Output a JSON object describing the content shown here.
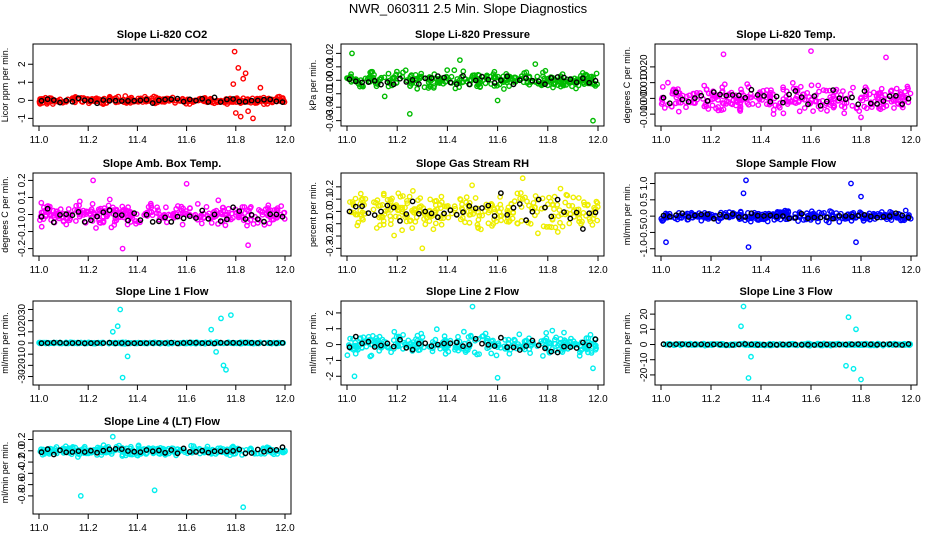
{
  "page_title": "NWR_060311  2.5 Min. Slope Diagnostics",
  "chart_data": [
    {
      "type": "scatter",
      "title": "Slope Li-820 CO2",
      "ylabel": "Licor ppm per min.",
      "color": "#ff0000",
      "xlim": [
        11.0,
        12.0
      ],
      "ylim": [
        -1.2,
        2.9
      ],
      "yticks": [
        -1,
        0,
        1,
        2
      ],
      "ytick_labels": [
        "-1",
        "0",
        "1",
        "2"
      ],
      "xticks": [
        11.0,
        11.2,
        11.4,
        11.6,
        11.8,
        12.0
      ],
      "xtick_labels": [
        "11.0",
        "11.2",
        "11.4",
        "11.6",
        "11.8",
        "12.0"
      ],
      "spread": 0.18,
      "outliers": [
        [
          11.795,
          2.7
        ],
        [
          11.81,
          1.8
        ],
        [
          11.83,
          1.2
        ],
        [
          11.85,
          -0.6
        ],
        [
          11.87,
          -1.0
        ],
        [
          11.79,
          0.9
        ],
        [
          11.82,
          -0.9
        ],
        [
          11.9,
          0.7
        ],
        [
          11.84,
          1.5
        ],
        [
          11.8,
          -0.7
        ]
      ]
    },
    {
      "type": "scatter",
      "title": "Slope Li-820 Pressure",
      "ylabel": "kPa per min.",
      "color": "#00bb00",
      "xlim": [
        11.0,
        12.0
      ],
      "ylim": [
        -0.031,
        0.024
      ],
      "yticks": [
        -0.03,
        -0.02,
        -0.01,
        0,
        0.01,
        0.02
      ],
      "ytick_labels": [
        "-0.03",
        "-0.02",
        "-0.01",
        "0.00",
        "0.01",
        "0.02"
      ],
      "xticks": [
        11.0,
        11.2,
        11.4,
        11.6,
        11.8,
        12.0
      ],
      "xtick_labels": [
        "11.0",
        "11.2",
        "11.4",
        "11.6",
        "11.8",
        "12.0"
      ],
      "spread": 0.006,
      "outliers": [
        [
          11.02,
          0.02
        ],
        [
          11.25,
          -0.025
        ],
        [
          11.6,
          -0.015
        ],
        [
          11.98,
          -0.03
        ],
        [
          11.45,
          0.015
        ],
        [
          11.15,
          -0.012
        ],
        [
          11.75,
          0.012
        ]
      ]
    },
    {
      "type": "scatter",
      "title": "Slope Li-820 Temp.",
      "ylabel": "degrees C per min.",
      "color": "#ff00ff",
      "xlim": [
        11.0,
        12.0
      ],
      "ylim": [
        -0.015,
        0.032
      ],
      "yticks": [
        -0.01,
        0,
        0.01,
        0.02
      ],
      "ytick_labels": [
        "-0.010",
        "0.000",
        "0.010",
        "0.020"
      ],
      "xticks": [
        11.0,
        11.2,
        11.4,
        11.6,
        11.8,
        12.0
      ],
      "xtick_labels": [
        "11.0",
        "11.2",
        "11.4",
        "11.6",
        "11.8",
        "12.0"
      ],
      "spread": 0.008,
      "outliers": [
        [
          11.25,
          0.028
        ],
        [
          11.6,
          0.03
        ],
        [
          11.45,
          -0.01
        ],
        [
          11.8,
          -0.012
        ],
        [
          11.9,
          0.026
        ]
      ]
    },
    {
      "type": "scatter",
      "title": "Slope Amb. Box Temp.",
      "ylabel": "degrees C per min.",
      "color": "#ff00ff",
      "xlim": [
        11.0,
        12.0
      ],
      "ylim": [
        -0.22,
        0.22
      ],
      "yticks": [
        -0.2,
        -0.1,
        0,
        0.1,
        0.2
      ],
      "ytick_labels": [
        "-0.2",
        "-0.1",
        "0.0",
        "0.1",
        "0.2"
      ],
      "xticks": [
        11.0,
        11.2,
        11.4,
        11.6,
        11.8,
        12.0
      ],
      "xtick_labels": [
        "11.0",
        "11.2",
        "11.4",
        "11.6",
        "11.8",
        "12.0"
      ],
      "spread": 0.06,
      "outliers": [
        [
          11.34,
          -0.2
        ],
        [
          11.6,
          0.18
        ],
        [
          11.22,
          0.2
        ],
        [
          11.85,
          -0.18
        ]
      ]
    },
    {
      "type": "scatter",
      "title": "Slope Gas Stream RH",
      "ylabel": "percent per min.",
      "color": "#eeee00",
      "xlim": [
        11.0,
        12.0
      ],
      "ylim": [
        -0.33,
        0.28
      ],
      "yticks": [
        -0.3,
        -0.2,
        -0.1,
        0,
        0.1,
        0.2
      ],
      "ytick_labels": [
        "-0.3",
        "-0.2",
        "-0.1",
        "0.0",
        "0.1",
        "0.2"
      ],
      "xticks": [
        11.0,
        11.2,
        11.4,
        11.6,
        11.8,
        12.0
      ],
      "xtick_labels": [
        "11.0",
        "11.2",
        "11.4",
        "11.6",
        "11.8",
        "12.0"
      ],
      "spread": 0.15,
      "outliers": [
        [
          11.3,
          -0.3
        ],
        [
          11.7,
          0.27
        ]
      ]
    },
    {
      "type": "scatter",
      "title": "Slope Sample Flow",
      "ylabel": "ml/min per min.",
      "color": "#0000ff",
      "xlim": [
        11.0,
        12.0
      ],
      "ylim": [
        -1.1,
        1.2
      ],
      "yticks": [
        -1,
        -0.5,
        0,
        0.5,
        1
      ],
      "ytick_labels": [
        "-1.0",
        "-0.5",
        "0.0",
        "0.5",
        "1.0"
      ],
      "xticks": [
        11.0,
        11.2,
        11.4,
        11.6,
        11.8,
        12.0
      ],
      "xtick_labels": [
        "11.0",
        "11.2",
        "11.4",
        "11.6",
        "11.8",
        "12.0"
      ],
      "spread": 0.15,
      "outliers": [
        [
          11.34,
          1.1
        ],
        [
          11.76,
          1.0
        ],
        [
          11.35,
          -0.95
        ],
        [
          11.78,
          -0.8
        ],
        [
          11.33,
          0.7
        ],
        [
          11.8,
          0.6
        ],
        [
          11.02,
          -0.8
        ]
      ]
    },
    {
      "type": "scatter",
      "title": "Slope Line 1 Flow",
      "ylabel": "ml/min per min.",
      "color": "#00eeee",
      "xlim": [
        11.0,
        12.0
      ],
      "ylim": [
        -34,
        34
      ],
      "yticks": [
        -30,
        -20,
        -10,
        0,
        10,
        20,
        30
      ],
      "ytick_labels": [
        "-30",
        "-20",
        "-10",
        "0",
        "10",
        "20",
        "30"
      ],
      "xticks": [
        11.0,
        11.2,
        11.4,
        11.6,
        11.8,
        12.0
      ],
      "xtick_labels": [
        "11.0",
        "11.2",
        "11.4",
        "11.6",
        "11.8",
        "12.0"
      ],
      "spread": 0.6,
      "outliers": [
        [
          11.33,
          30
        ],
        [
          11.34,
          -31
        ],
        [
          11.32,
          15
        ],
        [
          11.36,
          -12
        ],
        [
          11.3,
          10
        ],
        [
          11.74,
          22
        ],
        [
          11.76,
          -24
        ],
        [
          11.75,
          -20
        ],
        [
          11.7,
          12
        ],
        [
          11.72,
          -8
        ],
        [
          11.78,
          25
        ]
      ]
    },
    {
      "type": "scatter",
      "title": "Slope Line 2 Flow",
      "ylabel": "ml/min per min.",
      "color": "#00eeee",
      "xlim": [
        11.0,
        12.0
      ],
      "ylim": [
        -2.3,
        2.5
      ],
      "yticks": [
        -2,
        -1,
        0,
        1,
        2
      ],
      "ytick_labels": [
        "-2",
        "-1",
        "0",
        "1",
        "2"
      ],
      "xticks": [
        11.0,
        11.2,
        11.4,
        11.6,
        11.8,
        12.0
      ],
      "xtick_labels": [
        "11.0",
        "11.2",
        "11.4",
        "11.6",
        "11.8",
        "12.0"
      ],
      "spread": 0.65,
      "outliers": [
        [
          11.5,
          2.4
        ],
        [
          11.6,
          -2.1
        ],
        [
          11.03,
          -2.0
        ],
        [
          11.98,
          -1.5
        ]
      ]
    },
    {
      "type": "scatter",
      "title": "Slope Line 3 Flow",
      "ylabel": "ml/min per min.",
      "color": "#00eeee",
      "xlim": [
        11.0,
        12.0
      ],
      "ylim": [
        -24,
        26
      ],
      "yticks": [
        -20,
        -10,
        0,
        10,
        20
      ],
      "ytick_labels": [
        "-20",
        "-10",
        "0",
        "10",
        "20"
      ],
      "xticks": [
        11.0,
        11.2,
        11.4,
        11.6,
        11.8,
        12.0
      ],
      "xtick_labels": [
        "11.0",
        "11.2",
        "11.4",
        "11.6",
        "11.8",
        "12.0"
      ],
      "spread": 0.6,
      "outliers": [
        [
          11.33,
          25
        ],
        [
          11.35,
          -22
        ],
        [
          11.32,
          12
        ],
        [
          11.36,
          -8
        ],
        [
          11.75,
          18
        ],
        [
          11.77,
          -16
        ],
        [
          11.8,
          -23
        ],
        [
          11.78,
          10
        ],
        [
          11.74,
          -14
        ]
      ]
    },
    {
      "type": "scatter",
      "title": "Slope Line 4 (LT) Flow",
      "ylabel": "ml/min per min.",
      "color": "#00eeee",
      "xlim": [
        11.0,
        12.0
      ],
      "ylim": [
        -1.05,
        0.28
      ],
      "yticks": [
        -0.8,
        -0.6,
        -0.4,
        -0.2,
        0,
        0.2
      ],
      "ytick_labels": [
        "-0.8",
        "-0.6",
        "-0.4",
        "-0.2",
        "0.0",
        "0.2"
      ],
      "xticks": [
        11.0,
        11.2,
        11.4,
        11.6,
        11.8,
        12.0
      ],
      "xtick_labels": [
        "11.0",
        "11.2",
        "11.4",
        "11.6",
        "11.8",
        "12.0"
      ],
      "spread": 0.08,
      "outliers": [
        [
          11.17,
          -0.8
        ],
        [
          11.47,
          -0.7
        ],
        [
          11.83,
          -1.0
        ],
        [
          11.3,
          0.25
        ]
      ]
    }
  ]
}
